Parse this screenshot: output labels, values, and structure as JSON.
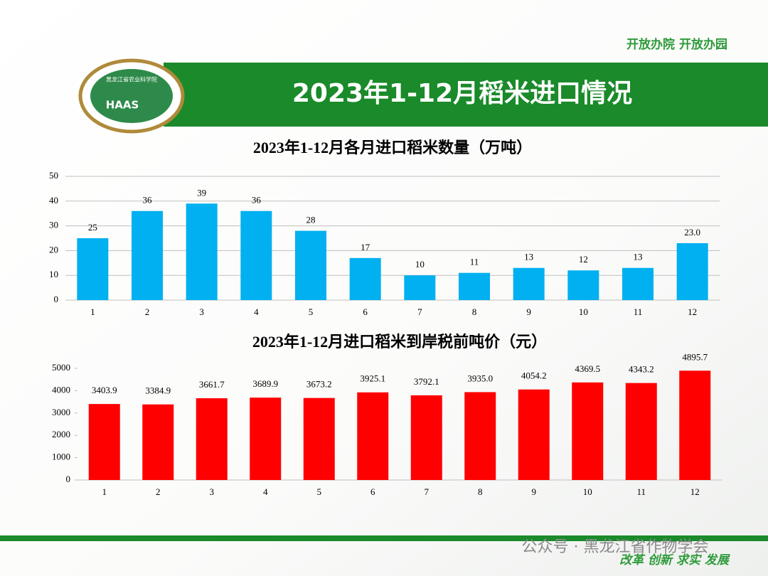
{
  "slogan_top": "开放办院 开放办园",
  "logo": {
    "abbr": "HAAS",
    "name": "黑龙江省农业科学院"
  },
  "header": {
    "title": "2023年1-12月稻米进口情况"
  },
  "chart_data": [
    {
      "type": "bar",
      "title": "2023年1-12月各月进口稻米数量（万吨）",
      "categories": [
        "1",
        "2",
        "3",
        "4",
        "5",
        "6",
        "7",
        "8",
        "9",
        "10",
        "11",
        "12"
      ],
      "values": [
        25,
        36,
        39,
        36,
        28,
        17,
        10,
        11,
        13,
        12,
        13,
        23
      ],
      "value_labels": [
        "25",
        "36",
        "39",
        "36",
        "28",
        "17",
        "10",
        "11",
        "13",
        "12",
        "13",
        "23.0"
      ],
      "color": "#00b0f0",
      "ylim": [
        0,
        50
      ],
      "yticks": [
        0,
        10,
        20,
        30,
        40,
        50
      ],
      "grid": true
    },
    {
      "type": "bar",
      "title": "2023年1-12月进口稻米到岸税前吨价（元）",
      "categories": [
        "1",
        "2",
        "3",
        "4",
        "5",
        "6",
        "7",
        "8",
        "9",
        "10",
        "11",
        "12"
      ],
      "values": [
        3403.9,
        3384.9,
        3661.7,
        3689.9,
        3673.2,
        3925.1,
        3792.1,
        3935.0,
        4054.2,
        4369.5,
        4343.2,
        4895.7
      ],
      "value_labels": [
        "3403.9",
        "3384.9",
        "3661.7",
        "3689.9",
        "3673.2",
        "3925.1",
        "3792.1",
        "3935.0",
        "4054.2",
        "4369.5",
        "4343.2",
        "4895.7"
      ],
      "color": "#ff0000",
      "ylim": [
        0,
        5000
      ],
      "yticks": [
        0,
        1000,
        2000,
        3000,
        4000,
        5000
      ],
      "grid": false
    }
  ],
  "watermark": "公众号 · 黑龙江省作物学会",
  "slogan_bottom": "改革 创新 求实 发展"
}
